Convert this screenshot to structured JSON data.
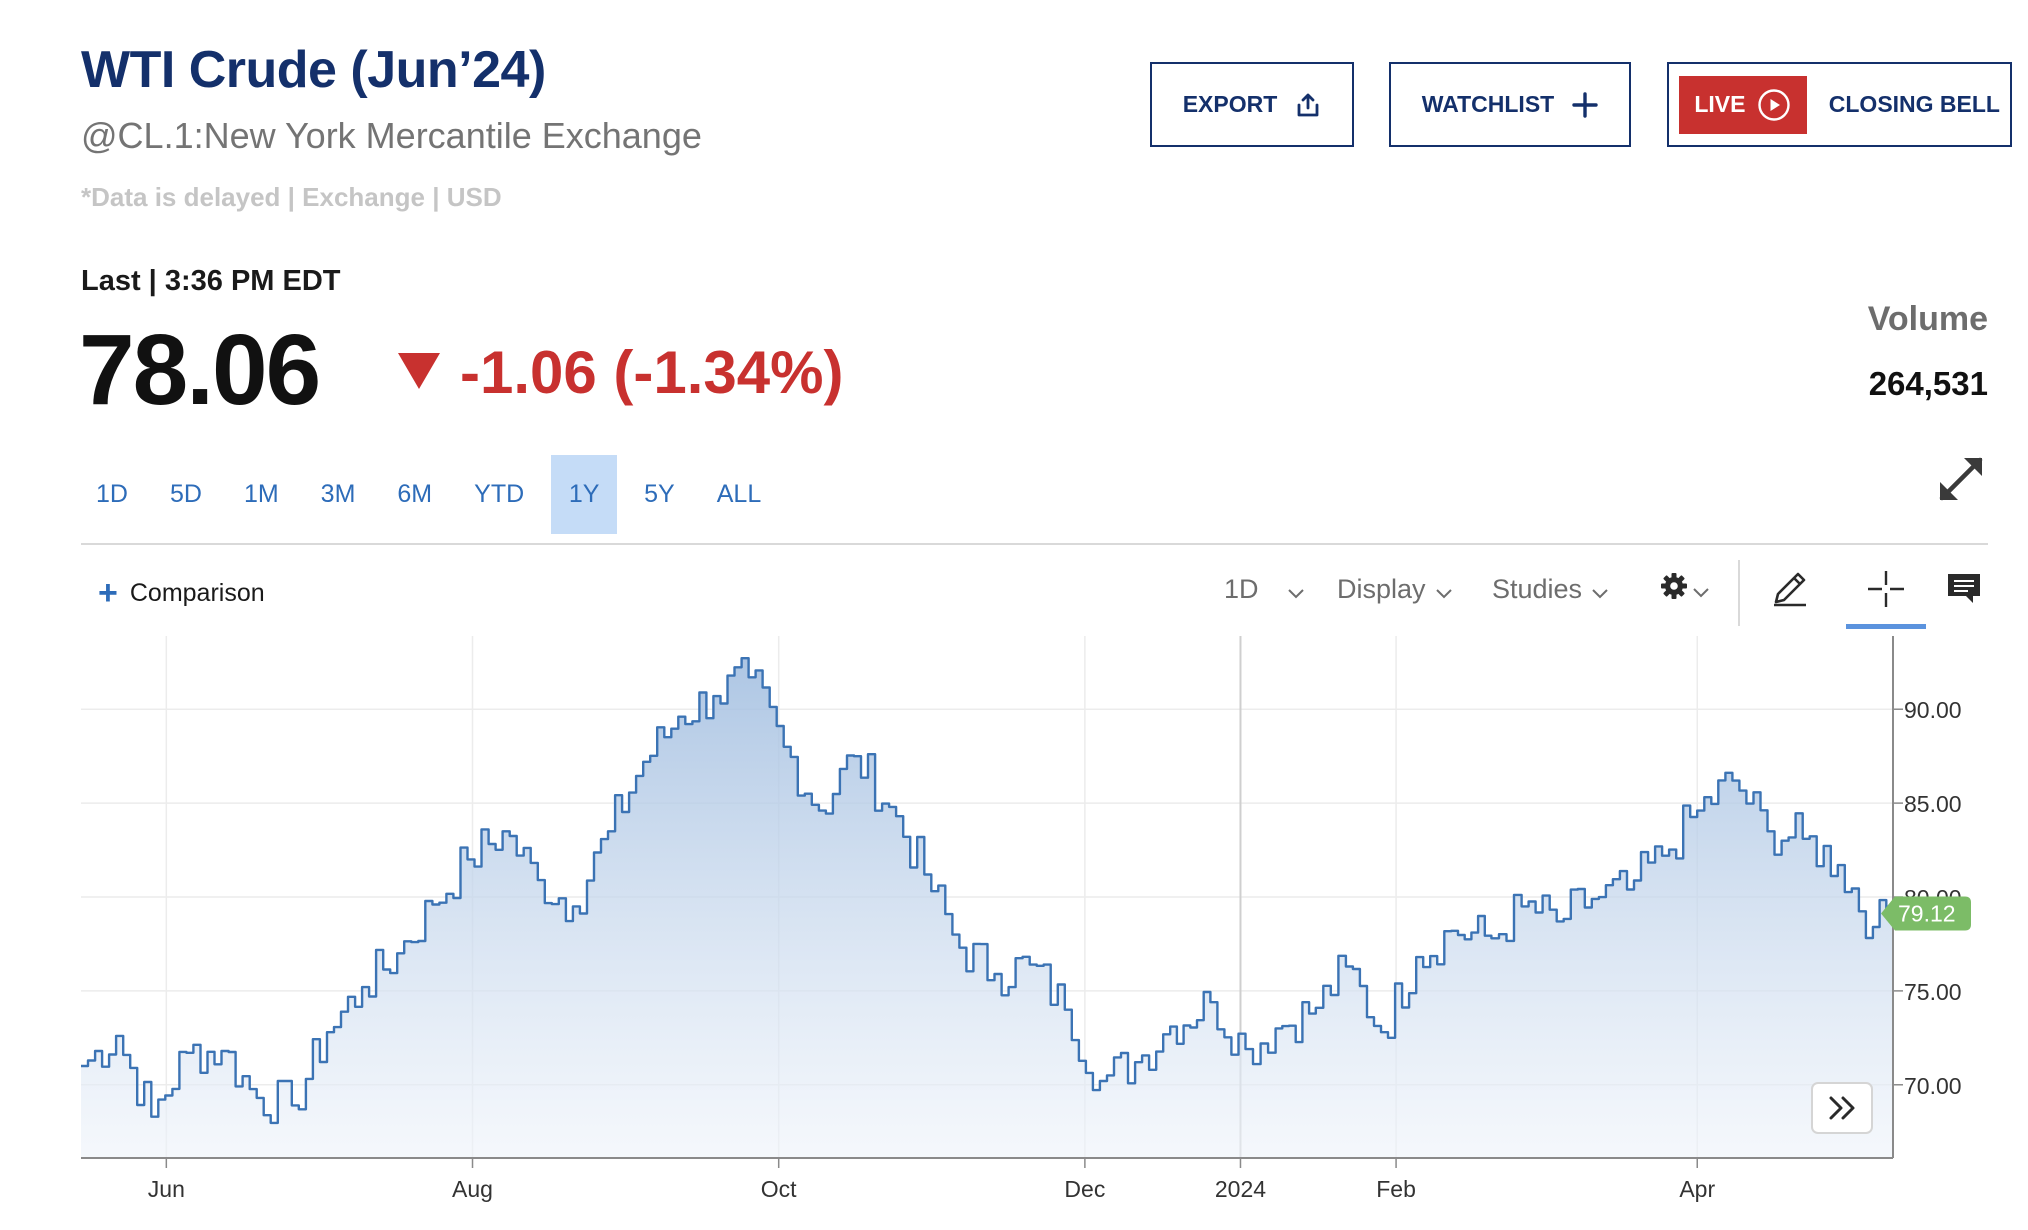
{
  "header": {
    "title": "WTI Crude (Jun’24)",
    "subtitle": "@CL.1:New York Mercantile Exchange",
    "note": "*Data is delayed | Exchange | USD"
  },
  "actions": {
    "export_label": "EXPORT",
    "export_icon": "share-upload-icon",
    "watchlist_label": "WATCHLIST",
    "watchlist_icon": "plus-icon",
    "live_label": "LIVE",
    "live_icon": "play-circle-icon",
    "closing_bell_label": "CLOSING BELL"
  },
  "quote": {
    "last_label": "Last | 3:36 PM EDT",
    "price": "78.06",
    "change": "-1.06 (-1.34%)",
    "direction_icon": "triangle-down-icon",
    "volume_label": "Volume",
    "volume_value": "264,531"
  },
  "ranges": {
    "tabs": [
      "1D",
      "5D",
      "1M",
      "3M",
      "6M",
      "YTD",
      "1Y",
      "5Y",
      "ALL"
    ],
    "active": "1Y"
  },
  "toolbar": {
    "comparison_label": "Comparison",
    "interval_label": "1D",
    "display_label": "Display",
    "studies_label": "Studies",
    "settings_icon": "gear-icon",
    "draw_icon": "pencil-icon",
    "crosshair_icon": "crosshair-icon",
    "comment_icon": "comment-icon",
    "expand_icon": "expand-arrows-icon",
    "forward_icon": "double-chevron-right-icon"
  },
  "colors": {
    "brand": "#14306b",
    "negative": "#c8312f",
    "link": "#2d6cb9",
    "active_tab": "#c5dcf7",
    "series_line": "#3b73b4",
    "last_price_badge": "#7cbc67"
  },
  "chart_data": {
    "type": "area",
    "title": "",
    "xlabel": "",
    "ylabel": "",
    "x_ticks": [
      "Jun",
      "Aug",
      "Oct",
      "Dec",
      "2024",
      "Feb",
      "Apr"
    ],
    "y_ticks": [
      70.0,
      75.0,
      80.0,
      85.0,
      90.0
    ],
    "y_tick_labels": [
      "70.00",
      "75.00",
      "80.00",
      "85.00",
      "90.00"
    ],
    "ylim": [
      66.1,
      93.9
    ],
    "grid": true,
    "last_price_label": "79.12",
    "series": [
      {
        "name": "",
        "x": [
          "2023-05-15",
          "2023-05-22",
          "2023-05-29",
          "2023-06-05",
          "2023-06-12",
          "2023-06-19",
          "2023-06-26",
          "2023-07-03",
          "2023-07-10",
          "2023-07-17",
          "2023-07-24",
          "2023-07-31",
          "2023-08-07",
          "2023-08-14",
          "2023-08-21",
          "2023-08-28",
          "2023-09-04",
          "2023-09-11",
          "2023-09-18",
          "2023-09-25",
          "2023-10-02",
          "2023-10-09",
          "2023-10-16",
          "2023-10-23",
          "2023-10-30",
          "2023-11-06",
          "2023-11-13",
          "2023-11-20",
          "2023-11-27",
          "2023-12-04",
          "2023-12-11",
          "2023-12-18",
          "2023-12-26",
          "2024-01-02",
          "2024-01-08",
          "2024-01-16",
          "2024-01-22",
          "2024-01-29",
          "2024-02-05",
          "2024-02-12",
          "2024-02-20",
          "2024-02-26",
          "2024-03-04",
          "2024-03-11",
          "2024-03-18",
          "2024-03-25",
          "2024-04-01",
          "2024-04-08",
          "2024-04-15",
          "2024-04-22",
          "2024-04-29",
          "2024-05-06",
          "2024-05-10"
        ],
        "values": [
          71.0,
          72.6,
          68.3,
          71.7,
          71.8,
          69.3,
          68.9,
          72.8,
          75.2,
          77.0,
          79.6,
          82.0,
          83.5,
          80.9,
          79.5,
          83.5,
          87.2,
          89.6,
          90.7,
          91.7,
          88.0,
          84.6,
          87.5,
          84.8,
          81.2,
          77.3,
          75.9,
          76.4,
          74.0,
          70.2,
          71.2,
          73.1,
          74.4,
          71.9,
          73.0,
          74.1,
          76.3,
          72.8,
          76.8,
          78.2,
          77.8,
          79.5,
          78.7,
          79.9,
          80.4,
          82.2,
          84.6,
          86.2,
          83.5,
          83.1,
          81.7,
          78.4,
          79.12
        ]
      }
    ]
  }
}
